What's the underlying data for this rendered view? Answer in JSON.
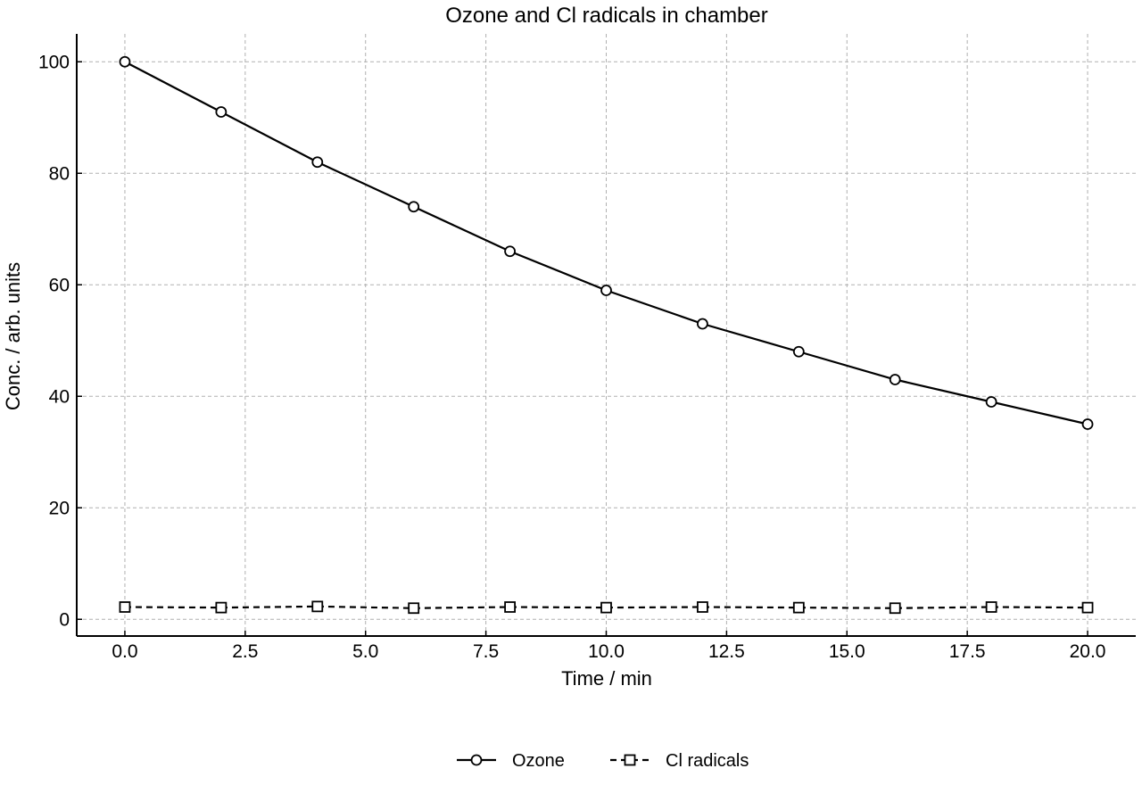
{
  "chart_data": {
    "type": "line",
    "title": "Ozone and Cl radicals in chamber",
    "xlabel": "Time / min",
    "ylabel": "Conc. / arb. units",
    "xlim": [
      -1,
      21
    ],
    "ylim": [
      -3,
      105
    ],
    "xticks": [
      0.0,
      2.5,
      5.0,
      7.5,
      10.0,
      12.5,
      15.0,
      17.5,
      20.0
    ],
    "xtick_labels": [
      "0.0",
      "2.5",
      "5.0",
      "7.5",
      "10.0",
      "12.5",
      "15.0",
      "17.5",
      "20.0"
    ],
    "yticks": [
      0,
      20,
      40,
      60,
      80,
      100
    ],
    "ytick_labels": [
      "0",
      "20",
      "40",
      "60",
      "80",
      "100"
    ],
    "grid": true,
    "legend_position": "bottom-center",
    "x": [
      0,
      2,
      4,
      6,
      8,
      10,
      12,
      14,
      16,
      18,
      20
    ],
    "series": [
      {
        "name": "Ozone",
        "values": [
          100,
          91,
          82,
          74,
          66,
          59,
          53,
          48,
          43,
          39,
          35
        ],
        "marker": "circle",
        "line_style": "solid",
        "color": "#000000"
      },
      {
        "name": "Cl radicals",
        "values": [
          2.2,
          2.1,
          2.3,
          2.0,
          2.2,
          2.1,
          2.2,
          2.1,
          2.0,
          2.2,
          2.1
        ],
        "marker": "square",
        "line_style": "dashed",
        "color": "#000000"
      }
    ]
  }
}
